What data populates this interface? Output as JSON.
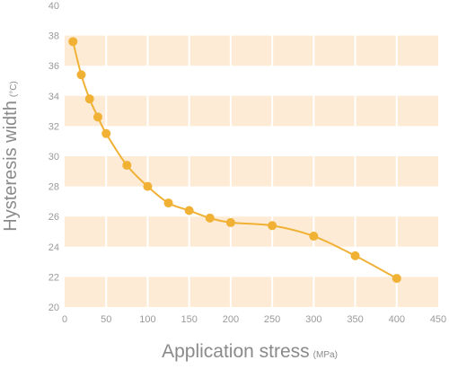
{
  "chart_data": {
    "type": "line",
    "xlabel": "Application stress",
    "xlabel_unit": "(MPa)",
    "ylabel": "Hysteresis width",
    "ylabel_unit": "(°C)",
    "xlim": [
      0,
      450
    ],
    "ylim": [
      20,
      40
    ],
    "xticks": [
      0,
      50,
      100,
      150,
      200,
      250,
      300,
      350,
      400,
      450
    ],
    "yticks": [
      20,
      22,
      24,
      26,
      28,
      30,
      32,
      34,
      36,
      38,
      40
    ],
    "grid": "alternating horizontal bands, vertical white separators",
    "series": [
      {
        "color": "#F0B135",
        "x": [
          10,
          20,
          30,
          40,
          50,
          75,
          100,
          125,
          150,
          175,
          200,
          250,
          300,
          350,
          400
        ],
        "y": [
          37.6,
          35.4,
          33.8,
          32.6,
          31.5,
          29.4,
          28.0,
          26.9,
          26.4,
          25.9,
          25.6,
          25.4,
          24.7,
          23.4,
          21.9
        ]
      }
    ],
    "band_color": "#FDEBD6"
  }
}
